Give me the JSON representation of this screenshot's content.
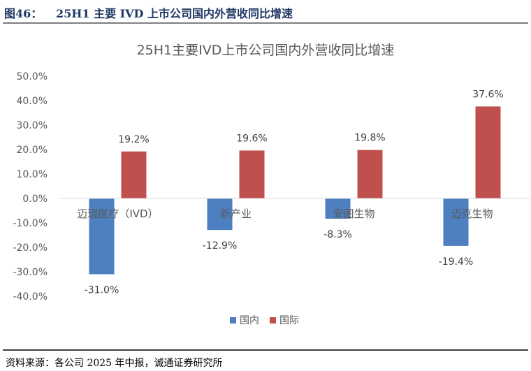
{
  "figure": {
    "label": "图46：",
    "title": "25H1  主要 IVD 上市公司国内外营收同比增速",
    "source": "资料来源：各公司 2025 年中报，诚通证券研究所"
  },
  "colors": {
    "domestic": "#4e7fc0",
    "international": "#c0504d",
    "axis_text": "#595959",
    "gridline": "#d9d9d9"
  },
  "chart_data": {
    "type": "bar",
    "title": "25H1主要IVD上市公司国内外营收同比增速",
    "categories": [
      "迈瑞医疗（IVD）",
      "新产业",
      "安图生物",
      "迈克生物"
    ],
    "series": [
      {
        "name": "国内",
        "values": [
          -31.0,
          -12.9,
          -8.3,
          -19.4
        ]
      },
      {
        "name": "国际",
        "values": [
          19.2,
          19.6,
          19.8,
          37.6
        ]
      }
    ],
    "data_labels": [
      [
        "-31.0%",
        "-12.9%",
        "-8.3%",
        "-19.4%"
      ],
      [
        "19.2%",
        "19.6%",
        "19.8%",
        "37.6%"
      ]
    ],
    "ylim": [
      -40,
      50
    ],
    "y_ticks": [
      50,
      40,
      30,
      20,
      10,
      0,
      -10,
      -20,
      -30,
      -40
    ],
    "y_tick_labels": [
      "50.0%",
      "40.0%",
      "30.0%",
      "20.0%",
      "10.0%",
      "0.0%",
      "-10.0%",
      "-20.0%",
      "-30.0%",
      "-40.0%"
    ],
    "legend_position": "bottom",
    "grid": false
  }
}
